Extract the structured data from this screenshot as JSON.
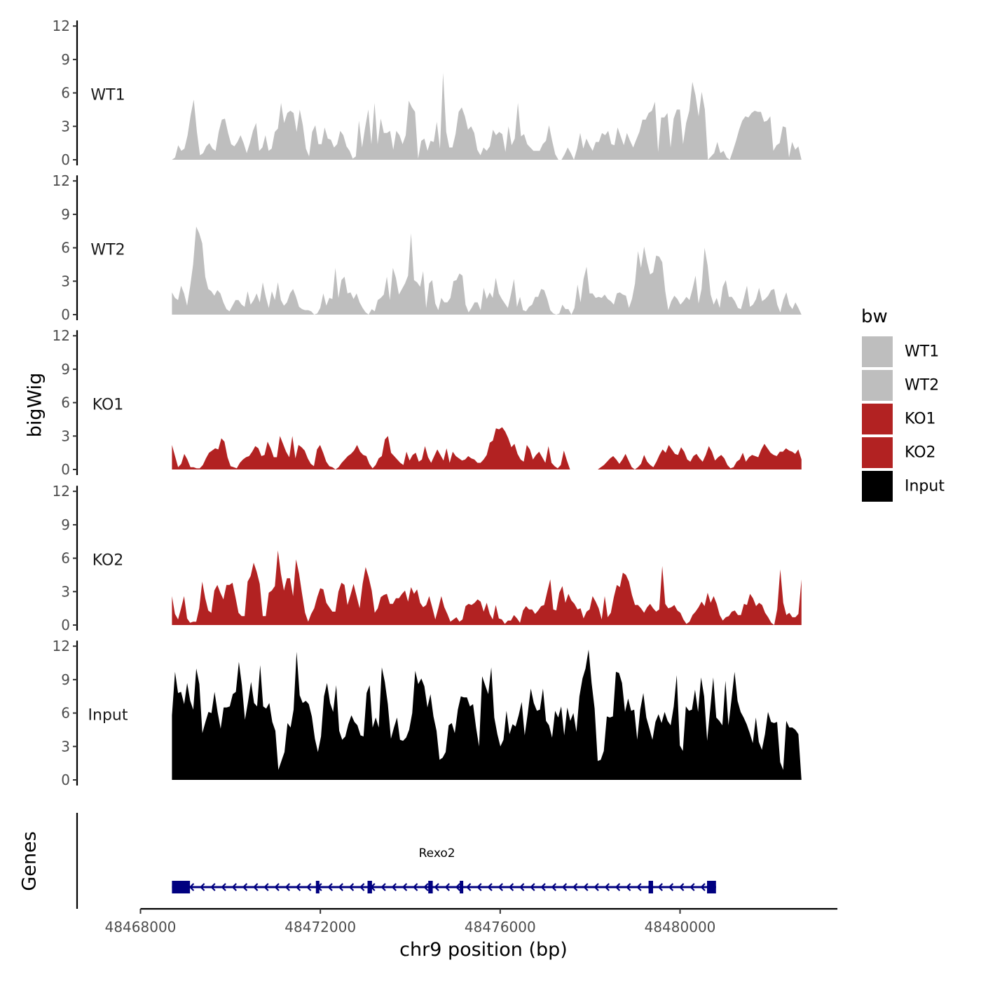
{
  "chart_data": {
    "type": "area",
    "region": {
      "chrom": "chr9",
      "start": 48468700,
      "end": 48482700
    },
    "xlabel": "chr9 position (bp)",
    "x_ticks": [
      "48468000",
      "48472000",
      "48476000",
      "48480000"
    ],
    "x_tick_values": [
      48468000,
      48472000,
      48476000,
      48480000
    ],
    "xlim": [
      48468000,
      48483500
    ],
    "ylabel": "bigWig",
    "ylim": [
      0,
      12
    ],
    "y_tick_labels": [
      "0",
      "3",
      "6",
      "9",
      "12"
    ],
    "legend": {
      "title": "bw",
      "entries": [
        "WT1",
        "WT2",
        "KO1",
        "KO2",
        "Input"
      ]
    },
    "series": [
      {
        "name": "WT1",
        "color": "#bebebe",
        "values": [
          0,
          0.2,
          1.3,
          0.8,
          1,
          2.2,
          4,
          5.4,
          2.5,
          0.4,
          0.6,
          1.2,
          1.5,
          1,
          0.8,
          2.5,
          3.6,
          3.7,
          2.4,
          1.4,
          1.2,
          1.6,
          2.2,
          1.5,
          0.6,
          1.5,
          2.6,
          3.3,
          0.8,
          1.1,
          2.2,
          0.8,
          1,
          2.5,
          2.8,
          5.1,
          3.3,
          4.2,
          4.4,
          4.2,
          2.5,
          4.5,
          3.1,
          1,
          0.3,
          2.5,
          3.1,
          1.4,
          1.4,
          2.9,
          1.9,
          1.8,
          1.1,
          1.4,
          2.6,
          2.2,
          1.2,
          0.8,
          0.1,
          0.3,
          3.5,
          1.1,
          2.9,
          4.5,
          1.4,
          5.1,
          1.4,
          3.7,
          2.4,
          2.4,
          2.6,
          0.9,
          2.6,
          2.2,
          1.4,
          2.2,
          5.3,
          4.7,
          4.3,
          0.1,
          1.7,
          1.9,
          0.8,
          1.7,
          1.6,
          3.4,
          1,
          7.8,
          2.5,
          1.1,
          1.1,
          2.3,
          4.3,
          4.7,
          3.9,
          2.7,
          3,
          2.4,
          0.9,
          0.4,
          1.1,
          0.8,
          1.2,
          2.7,
          2.2,
          2.5,
          2.3,
          0.7,
          3,
          1.3,
          1.9,
          5.1,
          2.1,
          2.3,
          1.4,
          1.1,
          0.8,
          0.8,
          0.8,
          1.4,
          1.7,
          3.1,
          1.7,
          0.5,
          0,
          0,
          0.5,
          1.1,
          0.6,
          0,
          1,
          2.4,
          1,
          1.9,
          1.3,
          0.8,
          1.6,
          1.6,
          2.4,
          2.2,
          2.6,
          1.4,
          1.3,
          2.9,
          2.1,
          1.3,
          2.4,
          1.7,
          1.1,
          1.8,
          2.5,
          3.6,
          3.6,
          4.2,
          4.4,
          5.2,
          0.7,
          3.8,
          3.8,
          4.2,
          1.1,
          3.7,
          4.5,
          4.5,
          1.4,
          3.3,
          4.4,
          7,
          5.8,
          3.9,
          6.1,
          4.5,
          0,
          0.3,
          0.6,
          1.6,
          0.6,
          0.8,
          0.2,
          0,
          0.8,
          1.7,
          2.7,
          3.5,
          3.9,
          3.8,
          4.2,
          4.4,
          4.3,
          4.3,
          3.4,
          3.5,
          3.9,
          0.8,
          1.3,
          1.5,
          3,
          2.9,
          0.2,
          1.6,
          0.9,
          1.2,
          0
        ]
      },
      {
        "name": "WT2",
        "color": "#bebebe",
        "values": [
          2,
          1.5,
          1.3,
          2.6,
          1.9,
          0.8,
          2.5,
          4.5,
          7.9,
          7.3,
          6.4,
          3.4,
          2.3,
          2.1,
          1.7,
          2.2,
          1.9,
          1.1,
          0.5,
          0.3,
          0.8,
          1.3,
          1.3,
          0.9,
          0.7,
          2.1,
          0.9,
          1.3,
          1.9,
          1.1,
          2.9,
          1.6,
          0.6,
          2.1,
          1.3,
          2.9,
          1.3,
          0.8,
          1.1,
          1.9,
          2.3,
          1.6,
          0.7,
          0.5,
          0.4,
          0.4,
          0.3,
          0,
          0.1,
          0.6,
          1.9,
          0.8,
          1.5,
          1.4,
          4.2,
          1.5,
          3.1,
          3.4,
          1.9,
          2,
          1.4,
          1.9,
          1.1,
          0.6,
          0.2,
          0,
          0.5,
          0.3,
          1.3,
          1.5,
          1.8,
          3.4,
          1.3,
          4.2,
          3.3,
          1.8,
          2.3,
          2.8,
          3.5,
          7.3,
          3.1,
          2.9,
          2.5,
          3.9,
          0.6,
          2.8,
          3.1,
          1,
          0.4,
          1.5,
          1.1,
          1.1,
          1.5,
          3,
          3.1,
          3.7,
          3.5,
          0.9,
          0.2,
          0.6,
          1.1,
          1.1,
          0.4,
          2.4,
          1.4,
          2,
          1.5,
          3.3,
          1.9,
          1.4,
          1,
          0.6,
          1.8,
          3.2,
          0.7,
          1.6,
          0.4,
          0.3,
          0.7,
          0.9,
          1.6,
          1.6,
          2.3,
          2.2,
          1.4,
          0.4,
          0.1,
          0,
          0.1,
          0.9,
          0.5,
          0.5,
          0,
          0.6,
          2.7,
          1.1,
          3.2,
          4.3,
          1.9,
          1.9,
          1.5,
          1.6,
          1.5,
          1.8,
          1.4,
          1.2,
          0.9,
          1.9,
          2,
          1.8,
          1.7,
          0.6,
          1.4,
          2.8,
          5.7,
          4.2,
          6.1,
          4.7,
          3.6,
          3.8,
          5.3,
          5.2,
          4.7,
          2.1,
          0.4,
          1.2,
          1.7,
          1.4,
          0.9,
          1.2,
          1.6,
          1.3,
          2.3,
          3.5,
          1,
          2.3,
          6,
          4.4,
          1.8,
          0.9,
          1.5,
          0.6,
          2.5,
          3.1,
          1.6,
          1.6,
          1.2,
          0.6,
          0.5,
          1.5,
          2.6,
          0.7,
          0.9,
          1.4,
          2.4,
          1.2,
          1.4,
          1.7,
          2.2,
          2.3,
          0.9,
          0.2,
          1.3,
          2,
          0.9,
          0.5,
          1.1,
          0.6,
          0
        ]
      },
      {
        "name": "KO1",
        "color": "#b22222",
        "values": [
          2.2,
          1.2,
          0.2,
          0.5,
          1.4,
          0.9,
          0.2,
          0.2,
          0.1,
          0.1,
          0.4,
          1,
          1.5,
          1.7,
          1.9,
          1.8,
          2.8,
          2.5,
          1.1,
          0.3,
          0.2,
          0.1,
          0.6,
          0.9,
          1.1,
          1.2,
          1.6,
          2.1,
          1.9,
          1.2,
          1.3,
          2.5,
          1.9,
          1.1,
          1.1,
          3,
          2.3,
          1.6,
          1.1,
          3,
          1,
          2.2,
          2,
          1.7,
          1,
          0.5,
          0.3,
          1.8,
          2.2,
          1.5,
          0.7,
          0.3,
          0.2,
          0,
          0.2,
          0.6,
          0.9,
          1.2,
          1.4,
          1.7,
          2.2,
          1.6,
          1.3,
          1.2,
          0.5,
          0.1,
          0.4,
          1,
          1.2,
          2.7,
          3,
          1.5,
          1.2,
          0.9,
          0.6,
          0.4,
          1.6,
          0.8,
          1.3,
          1.5,
          0.7,
          0.9,
          2.1,
          1.1,
          0.6,
          1.2,
          1.8,
          1.3,
          0.8,
          1.9,
          0.6,
          1.6,
          1.2,
          1,
          0.8,
          0.9,
          1.2,
          1,
          0.9,
          0.6,
          0.6,
          0.9,
          1.3,
          2.4,
          2.6,
          3.7,
          3.6,
          3.8,
          3.4,
          2.8,
          2,
          2.3,
          1.4,
          0.9,
          0.7,
          2.2,
          1.8,
          0.9,
          1.3,
          1.6,
          1.1,
          0.6,
          2.1,
          0.6,
          0.3,
          0.1,
          0.4,
          1.7,
          0.8,
          0,
          0,
          0,
          0,
          0,
          0,
          0,
          0,
          0,
          0,
          0.2,
          0.4,
          0.7,
          1,
          1.2,
          0.9,
          0.5,
          0.9,
          1.4,
          0.8,
          0.2,
          0,
          0.2,
          0.5,
          1.3,
          0.7,
          0.4,
          0.2,
          0.7,
          1.3,
          1.8,
          1.5,
          2.2,
          1.8,
          1.4,
          1.3,
          2,
          1.6,
          0.9,
          0.7,
          1.2,
          1.4,
          1,
          0.7,
          1.3,
          2.1,
          1.6,
          0.8,
          1.1,
          1.3,
          1,
          0.4,
          0.1,
          0.2,
          0.7,
          0.9,
          1.5,
          0.7,
          1.1,
          1.3,
          1.2,
          1.1,
          1.8,
          2.3,
          1.9,
          1.5,
          1.3,
          1.2,
          1.6,
          1.6,
          1.9,
          1.7,
          1.6,
          1.4,
          1.8,
          0.9
        ]
      },
      {
        "name": "KO2",
        "color": "#b22222",
        "values": [
          2.6,
          1,
          0.5,
          1.5,
          2.6,
          0.6,
          0.2,
          0.3,
          0.3,
          1.5,
          3.9,
          2.4,
          1.3,
          1.1,
          3.1,
          3.6,
          2.9,
          2.3,
          3.6,
          3.6,
          3.8,
          2.5,
          1.1,
          0.8,
          0.8,
          3.9,
          4.4,
          5.6,
          4.8,
          3.7,
          0.8,
          0.8,
          2.9,
          3.1,
          3.5,
          6.7,
          4.6,
          3.1,
          4.2,
          4.2,
          2.6,
          5.9,
          4.6,
          2.8,
          1.1,
          0.3,
          1,
          1.5,
          2.5,
          3.3,
          3.2,
          2,
          1.6,
          1.2,
          1.2,
          3,
          3.8,
          3.6,
          1.8,
          2.7,
          3.7,
          2.6,
          1.5,
          3.7,
          5.2,
          4.3,
          3.1,
          1.1,
          1.5,
          2.5,
          2.7,
          2.8,
          1.9,
          1.9,
          2.4,
          2.4,
          2.8,
          3.1,
          2.1,
          3.4,
          2.8,
          3.2,
          2,
          1.6,
          1.8,
          2.6,
          1.6,
          0.5,
          1.5,
          2.6,
          1.6,
          1,
          0.3,
          0.5,
          0.7,
          0.3,
          0.5,
          1.7,
          1.9,
          1.8,
          2,
          2.3,
          2.1,
          1.2,
          2,
          1,
          0.5,
          1.8,
          0.6,
          0.5,
          0.1,
          0.4,
          0.4,
          0.9,
          0.6,
          0.2,
          1.3,
          1.7,
          1.4,
          1.4,
          1,
          1.3,
          1.7,
          1.8,
          3,
          4.1,
          1.4,
          1.3,
          2.9,
          3.5,
          2,
          2.8,
          2.2,
          1.9,
          1.4,
          1.5,
          0.6,
          1.2,
          1.4,
          2.6,
          2.1,
          1.5,
          0.5,
          2.6,
          0.7,
          1.1,
          2.5,
          3.6,
          3.4,
          4.7,
          4.5,
          3.9,
          2.7,
          1.8,
          1.8,
          1.5,
          1.1,
          1.6,
          1.9,
          1.5,
          1.2,
          1.4,
          5.3,
          1.9,
          1.5,
          1.6,
          1.8,
          1.3,
          1.1,
          0.5,
          0.1,
          0.3,
          0.9,
          1.2,
          1.6,
          2.1,
          1.7,
          2.9,
          2,
          2.6,
          1.9,
          0.9,
          0.4,
          0.7,
          0.8,
          1.2,
          1.3,
          0.9,
          0.9,
          1.9,
          1.8,
          2.8,
          2.4,
          1.7,
          2,
          1.8,
          1.1,
          0.7,
          0.2,
          0,
          1.4,
          5,
          2,
          0.9,
          1.1,
          0.7,
          0.7,
          1,
          4.1
        ]
      },
      {
        "name": "Input",
        "color": "#000000",
        "values": [
          5.8,
          9.7,
          7.8,
          7.9,
          6.8,
          8.7,
          7.1,
          6.3,
          10,
          8.6,
          4.2,
          5.2,
          6.1,
          6,
          7.9,
          6.1,
          4.6,
          6.5,
          6.5,
          6.6,
          7.7,
          7.9,
          10.6,
          8.5,
          5.4,
          7,
          8.8,
          6.9,
          6.6,
          10.3,
          6.6,
          6.4,
          6.9,
          5.2,
          4.4,
          0.9,
          1.7,
          2.5,
          5.1,
          4.7,
          6.3,
          11.5,
          7.6,
          6.9,
          7.1,
          6.8,
          5.7,
          3.7,
          2.5,
          3.9,
          7.5,
          8.7,
          6.9,
          6.1,
          8.5,
          4.4,
          3.6,
          3.9,
          5,
          5.8,
          5.2,
          4.9,
          4,
          3.9,
          7.8,
          8.5,
          4.7,
          5.6,
          4.7,
          10.1,
          8.8,
          6.8,
          3.7,
          4.7,
          5.6,
          3.6,
          3.5,
          3.8,
          4.5,
          6,
          9.8,
          8.6,
          9.1,
          8.4,
          6.5,
          7.7,
          5.7,
          4.4,
          1.8,
          2,
          2.5,
          4.9,
          5.1,
          4.2,
          6.3,
          7.5,
          7.4,
          7.4,
          6.6,
          6.8,
          4.7,
          3,
          9.3,
          8.5,
          7.7,
          10.1,
          5.6,
          4.1,
          3,
          3.6,
          6.2,
          4.1,
          5,
          4.8,
          5.8,
          7,
          4,
          6,
          8.2,
          6.9,
          6.2,
          6.3,
          8.2,
          5.3,
          4.9,
          3.8,
          6.2,
          5.6,
          6.6,
          4,
          6.5,
          5.3,
          6,
          4.3,
          7.5,
          9.1,
          10,
          11.7,
          8.7,
          6.4,
          1.7,
          1.8,
          2.6,
          5.7,
          5.6,
          5.7,
          9.7,
          9.6,
          8.7,
          6.1,
          7.3,
          6.2,
          6.3,
          3.6,
          6.3,
          7.8,
          5.6,
          4.6,
          3.6,
          5.2,
          5.9,
          5.1,
          6.1,
          5.3,
          4.9,
          6.6,
          9.4,
          3.1,
          2.6,
          6.6,
          6.2,
          6.3,
          8.1,
          6.1,
          9.2,
          7.5,
          3.5,
          6.4,
          9.2,
          5.6,
          5.3,
          4.9,
          8.9,
          4.9,
          7.2,
          9.7,
          7.1,
          6.1,
          5.6,
          5,
          4.2,
          3.3,
          5.6,
          3.4,
          2.7,
          4.1,
          6.1,
          5.2,
          5.1,
          5.2,
          1.6,
          0.9,
          5.3,
          4.7,
          4.7,
          4.5,
          4.1,
          0
        ]
      }
    ],
    "genes_track": {
      "label": "Genes",
      "gene_name": "Rexo2",
      "color": "#000080",
      "gene_start": 48468700,
      "gene_end": 48480800,
      "strand": "-",
      "exons": [
        [
          48468700,
          48469100
        ],
        [
          48471900,
          48471950
        ],
        [
          48473050,
          48473150
        ],
        [
          48474400,
          48474500
        ],
        [
          48475100,
          48475150
        ],
        [
          48479300,
          48479400
        ],
        [
          48480600,
          48480800
        ]
      ]
    }
  }
}
